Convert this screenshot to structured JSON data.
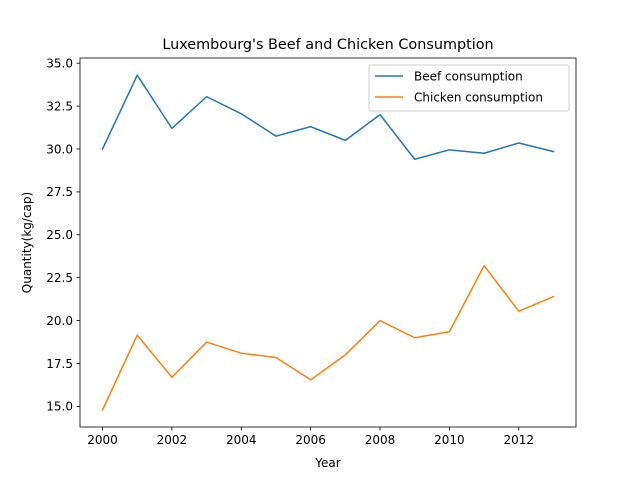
{
  "chart_data": {
    "type": "line",
    "title": "Luxembourg's Beef and Chicken Consumption",
    "xlabel": "Year",
    "ylabel": "Quantity(kg/cap)",
    "x": [
      2000,
      2001,
      2002,
      2003,
      2004,
      2005,
      2006,
      2007,
      2008,
      2009,
      2010,
      2011,
      2012,
      2013
    ],
    "series": [
      {
        "name": "Beef consumption",
        "color": "#1f77b4",
        "values": [
          30.0,
          34.3,
          31.2,
          33.05,
          32.05,
          30.75,
          31.3,
          30.5,
          32.0,
          29.4,
          29.95,
          29.75,
          30.35,
          29.85
        ]
      },
      {
        "name": "Chicken consumption",
        "color": "#ff7f0e",
        "values": [
          14.8,
          19.15,
          16.7,
          18.75,
          18.1,
          17.85,
          16.55,
          18.0,
          20.0,
          19.0,
          19.35,
          23.2,
          20.55,
          21.4
        ]
      }
    ],
    "xlim": [
      1999.35,
      2013.65
    ],
    "ylim": [
      13.8,
      35.3
    ],
    "xticks": [
      2000,
      2002,
      2004,
      2006,
      2008,
      2010,
      2012
    ],
    "xtick_labels": [
      "2000",
      "2002",
      "2004",
      "2006",
      "2008",
      "2010",
      "2012"
    ],
    "yticks": [
      15.0,
      17.5,
      20.0,
      22.5,
      25.0,
      27.5,
      30.0,
      32.5,
      35.0
    ],
    "ytick_labels": [
      "15.0",
      "17.5",
      "20.0",
      "22.5",
      "25.0",
      "27.5",
      "30.0",
      "32.5",
      "35.0"
    ],
    "grid": false,
    "legend_position": "top-right"
  }
}
